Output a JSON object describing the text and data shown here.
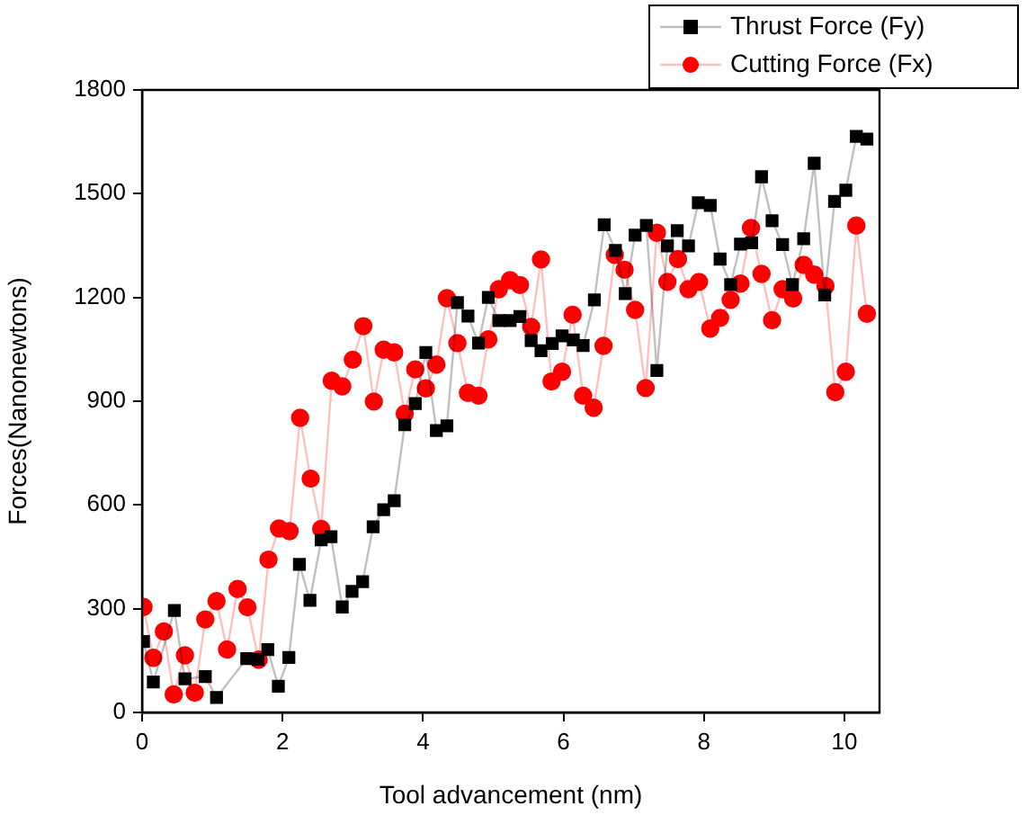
{
  "chart_data": {
    "type": "line",
    "xlabel": "Tool advancement (nm)",
    "ylabel": "Forces(Nanonewtons)",
    "xlim": [
      0,
      10.5
    ],
    "xticks": [
      0,
      2,
      4,
      6,
      8,
      10
    ],
    "ylim": [
      0,
      1800
    ],
    "yticks": [
      0,
      300,
      600,
      900,
      1200,
      1500,
      1800
    ],
    "grid": false,
    "legend": "top right",
    "line_style": "solid",
    "series": [
      {
        "name": "Thrust Force (Fy)",
        "color": "#000000",
        "marker": "square",
        "x": [
          0.02,
          0.16,
          0.46,
          0.61,
          0.9,
          1.06,
          1.49,
          1.65,
          1.79,
          1.94,
          2.09,
          2.24,
          2.39,
          2.55,
          2.69,
          2.85,
          2.99,
          3.14,
          3.29,
          3.44,
          3.59,
          3.74,
          3.89,
          4.04,
          4.19,
          4.34,
          4.49,
          4.64,
          4.79,
          4.93,
          5.08,
          5.24,
          5.38,
          5.54,
          5.68,
          5.84,
          5.98,
          6.14,
          6.28,
          6.44,
          6.58,
          6.74,
          6.88,
          7.02,
          7.18,
          7.33,
          7.48,
          7.62,
          7.78,
          7.92,
          8.09,
          8.23,
          8.38,
          8.52,
          8.68,
          8.82,
          8.97,
          9.12,
          9.26,
          9.42,
          9.57,
          9.72,
          9.86,
          10.02,
          10.17,
          10.32
        ],
        "values": [
          205,
          88,
          295,
          97,
          104,
          43,
          156,
          153,
          182,
          76,
          159,
          428,
          324,
          499,
          508,
          305,
          350,
          378,
          537,
          586,
          612,
          832,
          893,
          1041,
          815,
          829,
          1185,
          1146,
          1068,
          1200,
          1133,
          1133,
          1145,
          1075,
          1046,
          1067,
          1089,
          1077,
          1061,
          1193,
          1410,
          1336,
          1211,
          1380,
          1408,
          989,
          1349,
          1393,
          1349,
          1474,
          1466,
          1311,
          1237,
          1354,
          1358,
          1549,
          1422,
          1353,
          1237,
          1370,
          1588,
          1207,
          1478,
          1510,
          1666,
          1658
        ]
      },
      {
        "name": "Cutting Force (Fx)",
        "color": "#ff0000",
        "marker": "circle",
        "x": [
          0.02,
          0.16,
          0.31,
          0.45,
          0.61,
          0.75,
          0.9,
          1.06,
          1.21,
          1.36,
          1.5,
          1.66,
          1.8,
          1.95,
          2.1,
          2.25,
          2.4,
          2.55,
          2.7,
          2.85,
          3.0,
          3.15,
          3.3,
          3.44,
          3.59,
          3.74,
          3.89,
          4.04,
          4.19,
          4.34,
          4.49,
          4.64,
          4.79,
          4.93,
          5.08,
          5.24,
          5.38,
          5.54,
          5.68,
          5.83,
          5.98,
          6.13,
          6.28,
          6.43,
          6.57,
          6.73,
          6.87,
          7.02,
          7.17,
          7.33,
          7.48,
          7.63,
          7.78,
          7.93,
          8.09,
          8.23,
          8.38,
          8.52,
          8.67,
          8.82,
          8.97,
          9.12,
          9.27,
          9.42,
          9.57,
          9.73,
          9.87,
          10.02,
          10.17,
          10.32
        ],
        "values": [
          305,
          158,
          234,
          52,
          165,
          57,
          269,
          322,
          182,
          357,
          304,
          153,
          442,
          532,
          524,
          852,
          676,
          531,
          959,
          943,
          1020,
          1117,
          899,
          1049,
          1041,
          864,
          992,
          937,
          1006,
          1198,
          1068,
          924,
          916,
          1079,
          1224,
          1250,
          1236,
          1115,
          1310,
          957,
          985,
          1150,
          916,
          881,
          1060,
          1323,
          1280,
          1164,
          938,
          1387,
          1245,
          1311,
          1224,
          1245,
          1110,
          1141,
          1193,
          1240,
          1401,
          1268,
          1134,
          1224,
          1197,
          1294,
          1266,
          1233,
          926,
          985,
          1408,
          1153
        ]
      }
    ]
  }
}
